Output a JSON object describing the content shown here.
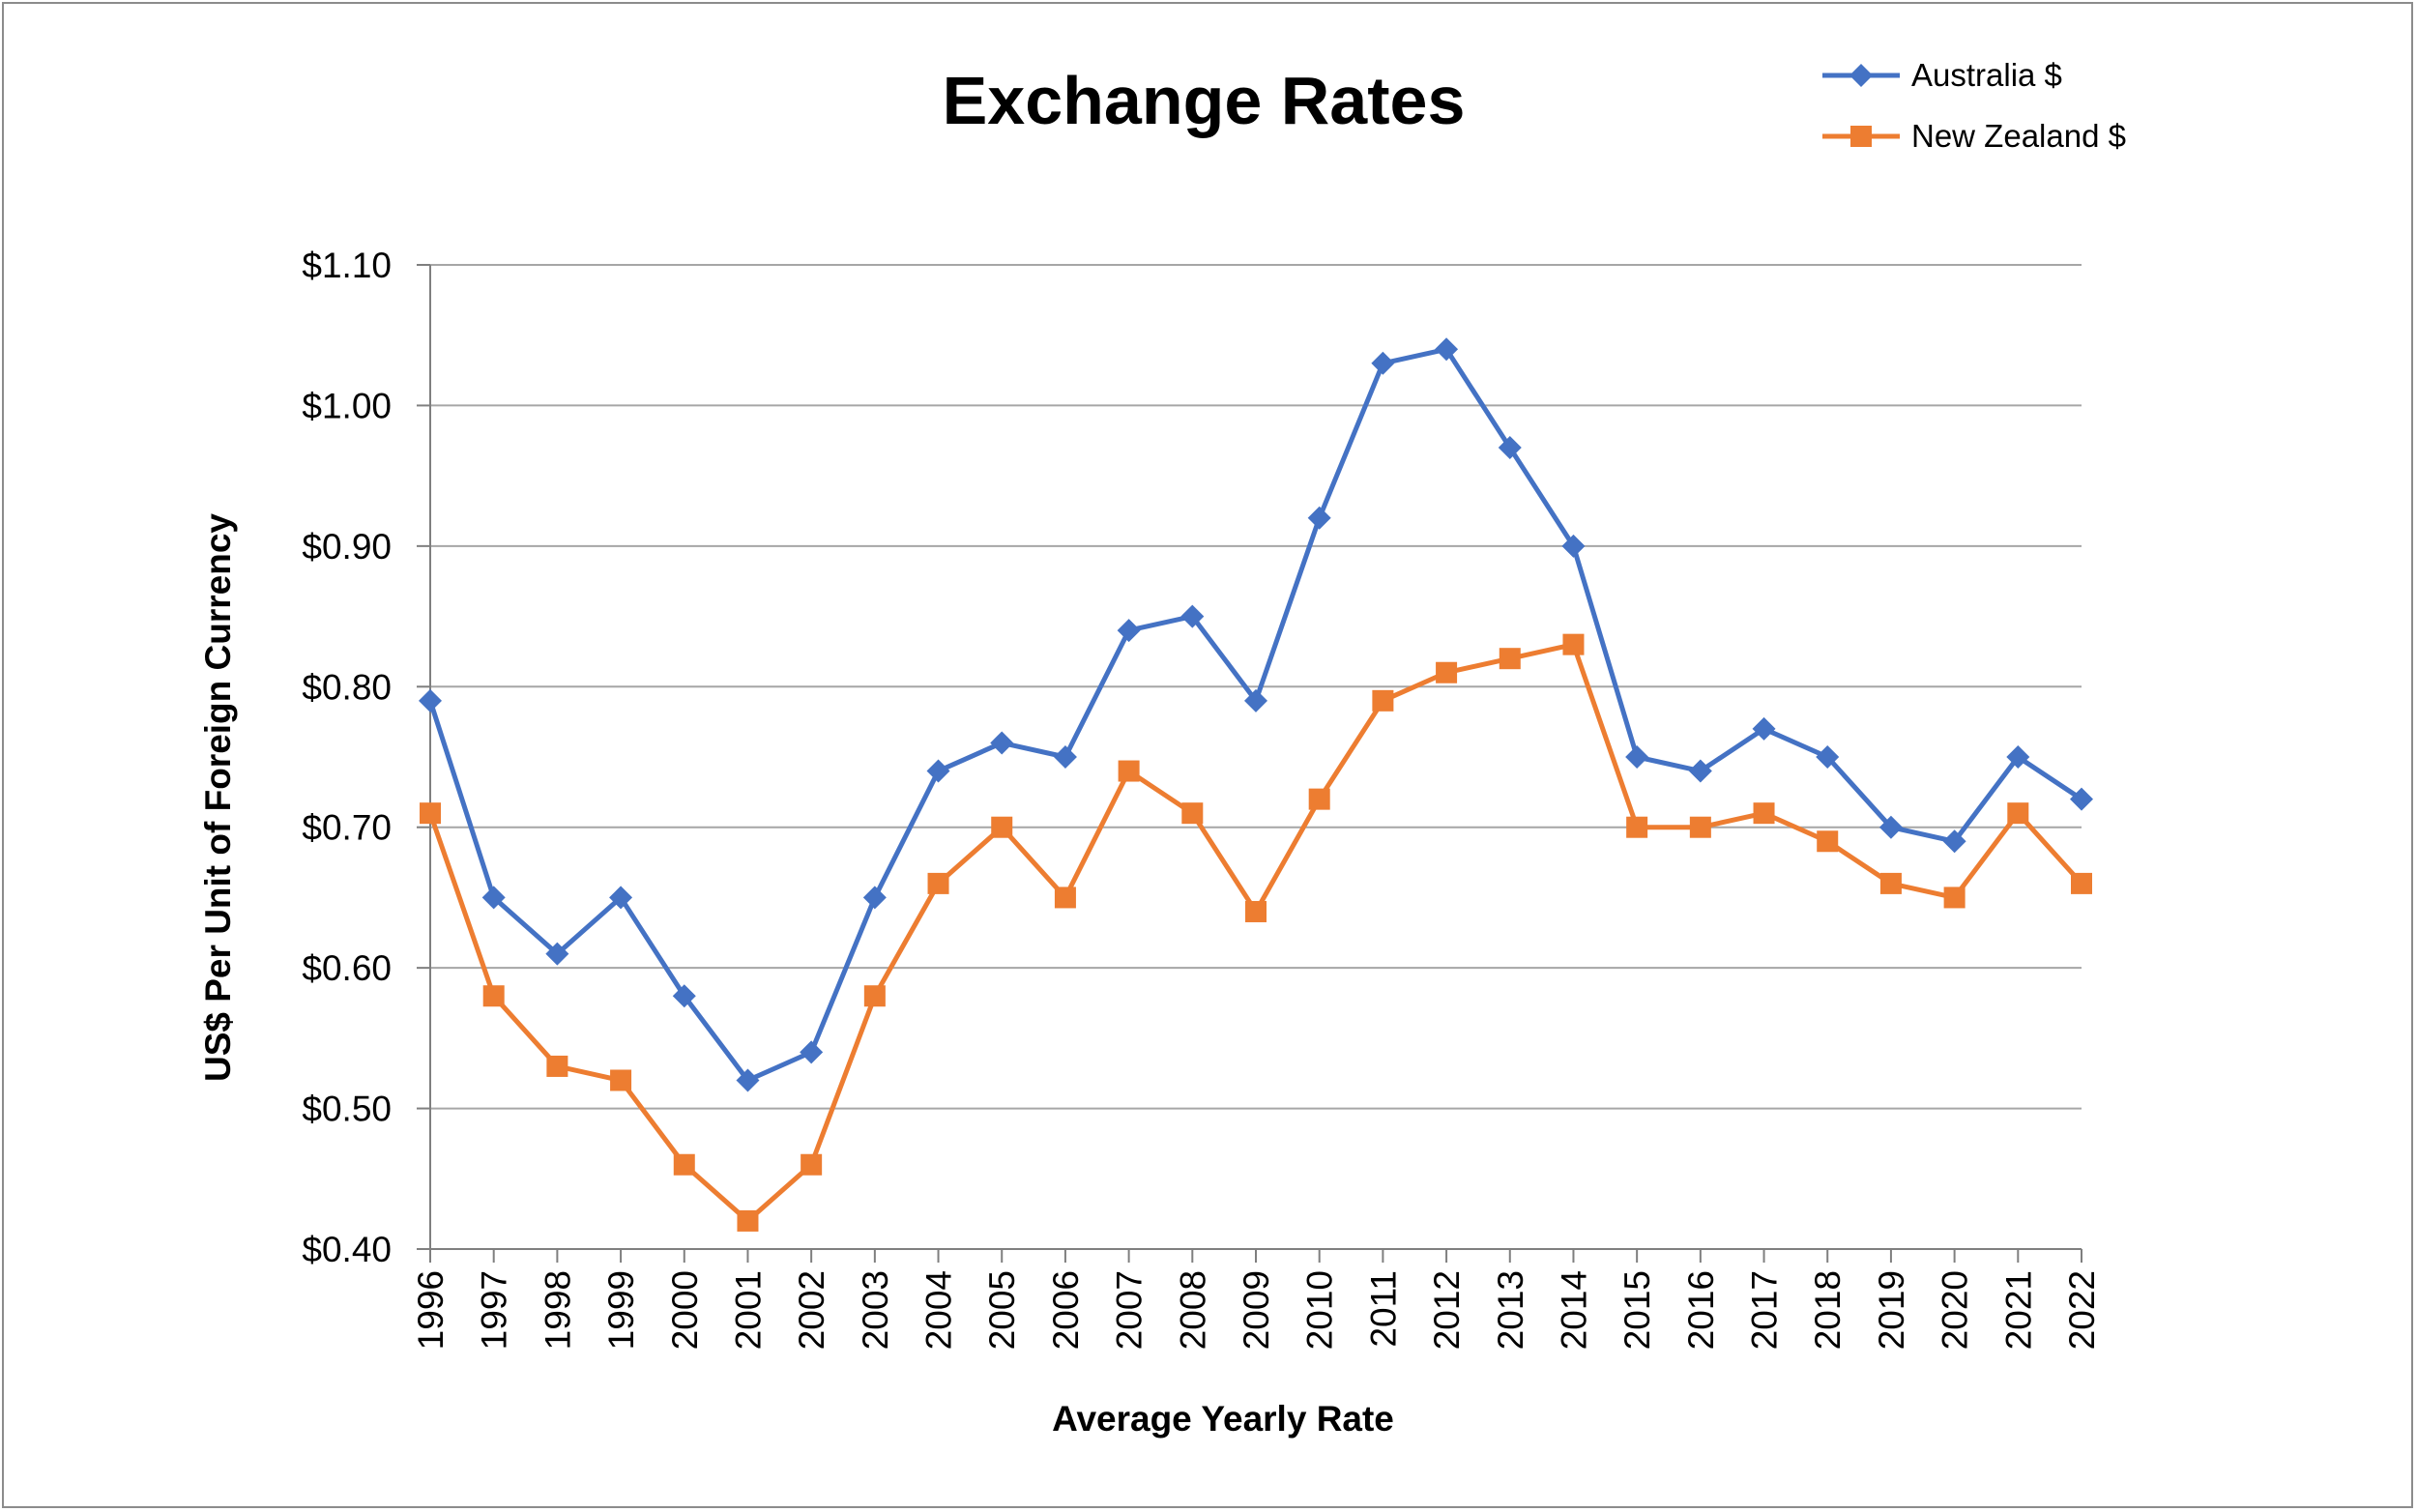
{
  "chart_data": {
    "type": "line",
    "title": "Exchange Rates",
    "xlabel": "Average Yearly Rate",
    "ylabel": "US$ Per Unit of Foreign Currency",
    "ylim": [
      0.4,
      1.1
    ],
    "yticks": [
      0.4,
      0.5,
      0.6,
      0.7,
      0.8,
      0.9,
      1.0,
      1.1
    ],
    "ytick_labels": [
      "$0.40",
      "$0.50",
      "$0.60",
      "$0.70",
      "$0.80",
      "$0.90",
      "$1.00",
      "$1.10"
    ],
    "grid": "horizontal",
    "legend": "top-right",
    "categories": [
      "1996",
      "1997",
      "1998",
      "1999",
      "2000",
      "2001",
      "2002",
      "2003",
      "2004",
      "2005",
      "2006",
      "2007",
      "2008",
      "2009",
      "2010",
      "2011",
      "2012",
      "2013",
      "2014",
      "2015",
      "2016",
      "2017",
      "2018",
      "2019",
      "2020",
      "2021",
      "2022"
    ],
    "series": [
      {
        "name": "Australia $",
        "color": "#4472C4",
        "marker": "diamond",
        "values": [
          0.79,
          0.65,
          0.61,
          0.65,
          0.58,
          0.52,
          0.54,
          0.65,
          0.74,
          0.76,
          0.75,
          0.84,
          0.85,
          0.79,
          0.92,
          1.03,
          1.04,
          0.97,
          0.9,
          0.75,
          0.74,
          0.77,
          0.75,
          0.7,
          0.69,
          0.75,
          0.72
        ]
      },
      {
        "name": "New Zealand $",
        "color": "#ED7D31",
        "marker": "square",
        "values": [
          0.71,
          0.58,
          0.53,
          0.52,
          0.46,
          0.42,
          0.46,
          0.58,
          0.66,
          0.7,
          0.65,
          0.74,
          0.71,
          0.64,
          0.72,
          0.79,
          0.81,
          0.82,
          0.83,
          0.7,
          0.7,
          0.71,
          0.69,
          0.66,
          0.65,
          0.71,
          0.66
        ]
      }
    ]
  }
}
